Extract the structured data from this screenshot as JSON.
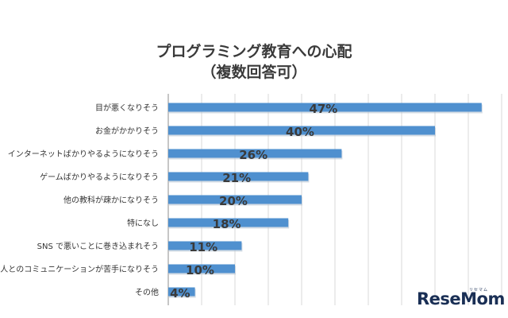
{
  "chart_data": {
    "type": "bar",
    "orientation": "horizontal",
    "title": "プログラミング教育への心配",
    "subtitle": "（複数回答可）",
    "categories": [
      "目が悪くなりそう",
      "お金がかかりそう",
      "インターネットばかりやるようになりそう",
      "ゲームばかりやるようになりそう",
      "他の教科が疎かになりそう",
      "特になし",
      "SNS で悪いことに巻き込まれそう",
      "人とのコミュニケーションが苦手になりそう",
      "その他"
    ],
    "values": [
      47,
      40,
      26,
      21,
      20,
      18,
      11,
      10,
      4
    ],
    "value_labels": [
      "47%",
      "40%",
      "26%",
      "21%",
      "20%",
      "18%",
      "11%",
      "10%",
      "4%"
    ],
    "xlim": [
      0,
      50
    ],
    "grid": true,
    "bar_color": "#4f90cf"
  },
  "logo": {
    "text": "ReseMom",
    "sub": "リセマム"
  }
}
